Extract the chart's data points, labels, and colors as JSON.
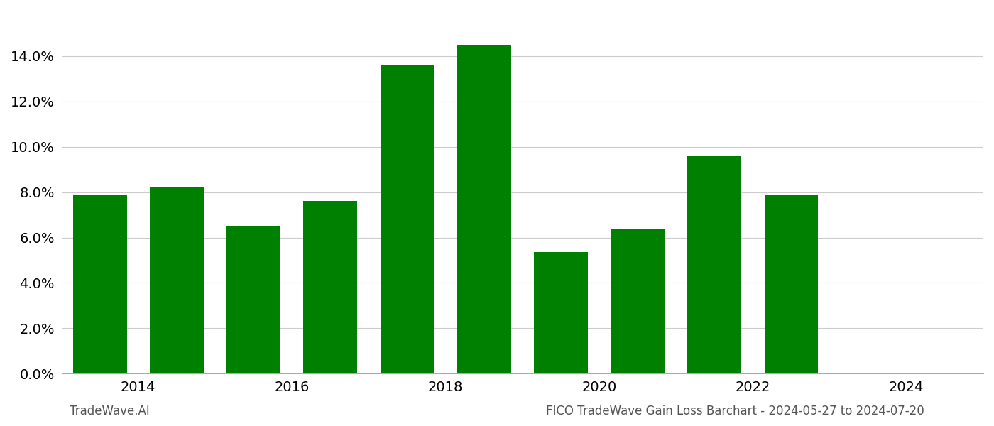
{
  "years": [
    2013.5,
    2014.5,
    2015.5,
    2016.5,
    2017.5,
    2018.5,
    2019.5,
    2020.5,
    2021.5,
    2022.5
  ],
  "values": [
    0.0785,
    0.082,
    0.065,
    0.076,
    0.136,
    0.145,
    0.0535,
    0.0635,
    0.096,
    0.079
  ],
  "bar_color": "#008000",
  "bar_width": 0.7,
  "ylim": [
    0,
    0.16
  ],
  "yticks": [
    0.0,
    0.02,
    0.04,
    0.06,
    0.08,
    0.1,
    0.12,
    0.14
  ],
  "xlim": [
    2013.0,
    2025.0
  ],
  "xtick_positions": [
    2014,
    2016,
    2018,
    2020,
    2022,
    2024
  ],
  "xtick_labels": [
    "2014",
    "2016",
    "2018",
    "2020",
    "2022",
    "2024"
  ],
  "footer_left": "TradeWave.AI",
  "footer_right": "FICO TradeWave Gain Loss Barchart - 2024-05-27 to 2024-07-20",
  "background_color": "#ffffff",
  "grid_color": "#cccccc",
  "fontsize_ticks": 14,
  "fontsize_footer": 12
}
